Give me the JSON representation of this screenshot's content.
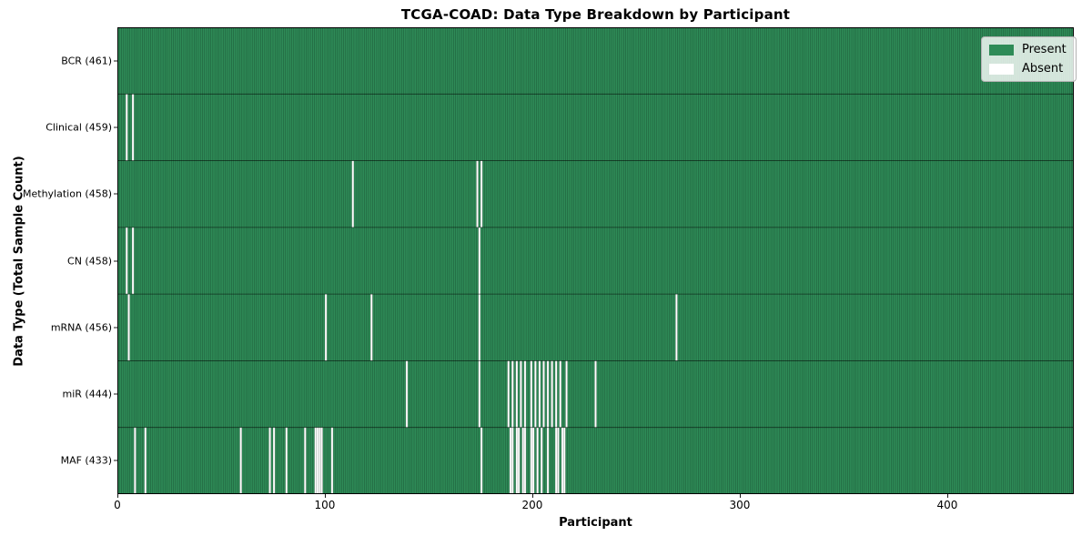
{
  "chart_data": {
    "type": "heatmap",
    "title": "TCGA-COAD: Data Type Breakdown by Participant",
    "xlabel": "Participant",
    "ylabel": "Data Type (Total Sample Count)",
    "x_ticks": [
      0,
      100,
      200,
      300,
      400
    ],
    "xlim": [
      0,
      461
    ],
    "n_participants": 461,
    "grid": false,
    "legend_position": "upper-right",
    "legend": [
      {
        "label": "Present",
        "color": "#2e8b57"
      },
      {
        "label": "Absent",
        "color": "#ffffff"
      }
    ],
    "colors": {
      "present": "#2e8b57",
      "absent": "#ffffff",
      "cell_edge": "#000000",
      "row_separator": "#000000",
      "plot_border": "#000000",
      "text": "#000000"
    },
    "rows": [
      {
        "label": "BCR (461)",
        "data_type": "BCR",
        "present_count": 461,
        "absent_participants": []
      },
      {
        "label": "Clinical (459)",
        "data_type": "Clinical",
        "present_count": 459,
        "absent_participants": [
          4,
          7
        ]
      },
      {
        "label": "Methylation (458)",
        "data_type": "Methylation",
        "present_count": 458,
        "absent_participants": [
          113,
          173,
          175
        ]
      },
      {
        "label": "CN (458)",
        "data_type": "CN",
        "present_count": 458,
        "absent_participants": [
          4,
          7,
          174
        ]
      },
      {
        "label": "mRNA (456)",
        "data_type": "mRNA",
        "present_count": 456,
        "absent_participants": [
          5,
          100,
          122,
          174,
          269
        ]
      },
      {
        "label": "miR (444)",
        "data_type": "miR",
        "present_count": 444,
        "absent_participants": [
          139,
          174,
          188,
          190,
          192,
          194,
          196,
          199,
          201,
          203,
          205,
          207,
          209,
          211,
          213,
          216,
          230
        ]
      },
      {
        "label": "MAF (433)",
        "data_type": "MAF",
        "present_count": 433,
        "absent_participants": [
          8,
          13,
          59,
          73,
          75,
          81,
          90,
          95,
          96,
          97,
          98,
          103,
          175,
          189,
          190,
          192,
          193,
          195,
          196,
          199,
          200,
          202,
          204,
          207,
          211,
          212,
          214,
          215
        ]
      }
    ]
  }
}
